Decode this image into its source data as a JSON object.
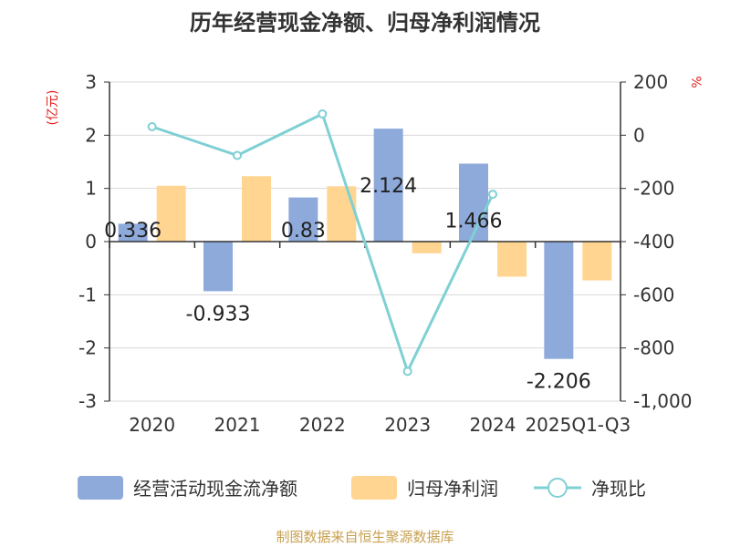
{
  "chart_data": {
    "type": "bar+line",
    "title": "历年经营现金净额、归母净利润情况",
    "categories": [
      "2020",
      "2021",
      "2022",
      "2023",
      "2024",
      "2025Q1-Q3"
    ],
    "series": [
      {
        "name": "经营活动现金流净额",
        "type": "bar",
        "axis": "left",
        "color": "#8eaadb",
        "values": [
          0.336,
          -0.933,
          0.83,
          2.124,
          1.466,
          -2.206
        ]
      },
      {
        "name": "归母净利润",
        "type": "bar",
        "axis": "left",
        "color": "#ffd591",
        "values": [
          1.05,
          1.23,
          1.04,
          -0.22,
          -0.66,
          -0.73
        ]
      },
      {
        "name": "净现比",
        "type": "line",
        "axis": "right",
        "color": "#7fd0d4",
        "values": [
          32,
          -76,
          80,
          -888,
          -222,
          null
        ]
      }
    ],
    "data_labels": [
      "0.336",
      "-0.933",
      "0.83",
      "2.124",
      "1.466",
      "-2.206"
    ],
    "left_axis": {
      "unit": "(亿元)",
      "range": [
        -3,
        3
      ],
      "ticks": [
        3,
        2,
        1,
        0,
        -1,
        -2,
        -3
      ],
      "tick_labels": [
        "3",
        "2",
        "1",
        "0",
        "-1",
        "-2",
        "-3"
      ]
    },
    "right_axis": {
      "unit": "%",
      "range": [
        -1000,
        200
      ],
      "ticks": [
        200,
        0,
        -200,
        -400,
        -600,
        -800,
        -1000
      ],
      "tick_labels": [
        "200",
        "0",
        "-200",
        "-400",
        "-600",
        "-800",
        "-1,000"
      ]
    },
    "grid": true,
    "legend_position": "bottom"
  },
  "source": "制图数据来自恒生聚源数据库"
}
